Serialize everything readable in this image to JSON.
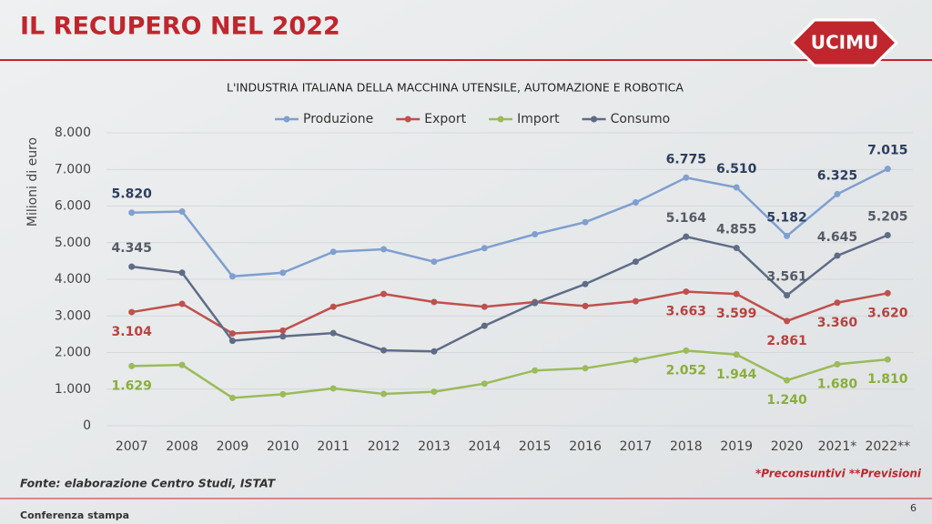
{
  "slide": {
    "title": "IL RECUPERO NEL 2022",
    "logo": "UCIMU",
    "source": "Fonte: elaborazione Centro Studi, ISTAT",
    "note": "*Preconsuntivi **Previsioni",
    "footer": "Conferenza stampa",
    "page": "6"
  },
  "chart_data": {
    "type": "line",
    "title": "L'INDUSTRIA ITALIANA DELLA MACCHINA UTENSILE, AUTOMAZIONE E ROBOTICA",
    "y_label": "Milioni di euro",
    "categories": [
      "2007",
      "2008",
      "2009",
      "2010",
      "2011",
      "2012",
      "2013",
      "2014",
      "2015",
      "2016",
      "2017",
      "2018",
      "2019",
      "2020",
      "2021*",
      "2022**"
    ],
    "ylim": [
      0,
      8000
    ],
    "yticks": [
      0,
      {
        "value": 1000,
        "label": "1.000"
      },
      {
        "value": 2000,
        "label": "2.000"
      },
      {
        "value": 3000,
        "label": "3.000"
      },
      {
        "value": 4000,
        "label": "4.000"
      },
      {
        "value": 5000,
        "label": "5.000"
      },
      {
        "value": 6000,
        "label": "6.000"
      },
      {
        "value": 7000,
        "label": "7.000"
      },
      {
        "value": 8000,
        "label": "8.000"
      }
    ],
    "grid": true,
    "legend": "top",
    "series": [
      {
        "name": "Produzione",
        "color": "#7f9fd0",
        "label_color": "#2d3e5c",
        "label_position": "above",
        "values": [
          5820,
          5850,
          4080,
          4180,
          4750,
          4820,
          4480,
          4850,
          5230,
          5560,
          6100,
          6775,
          6510,
          5182,
          6325,
          7015
        ],
        "value_labels": [
          "5.820",
          null,
          null,
          null,
          null,
          null,
          null,
          null,
          null,
          null,
          null,
          "6.775",
          "6.510",
          "5.182",
          "6.325",
          "7.015"
        ]
      },
      {
        "name": "Export",
        "color": "#c0504d",
        "label_color": "#b8423f",
        "label_position": "below",
        "values": [
          3104,
          3330,
          2520,
          2600,
          3250,
          3600,
          3380,
          3250,
          3380,
          3270,
          3400,
          3663,
          3599,
          2861,
          3360,
          3620
        ],
        "value_labels": [
          "3.104",
          null,
          null,
          null,
          null,
          null,
          null,
          null,
          null,
          null,
          null,
          "3.663",
          "3.599",
          "2.861",
          "3.360",
          "3.620"
        ]
      },
      {
        "name": "Import",
        "color": "#9bbb59",
        "label_color": "#8aae3c",
        "label_position": "below",
        "values": [
          1629,
          1660,
          760,
          860,
          1020,
          870,
          930,
          1150,
          1510,
          1570,
          1790,
          2052,
          1944,
          1240,
          1680,
          1810
        ],
        "value_labels": [
          "1.629",
          null,
          null,
          null,
          null,
          null,
          null,
          null,
          null,
          null,
          null,
          "2.052",
          "1.944",
          "1.240",
          "1.680",
          "1.810"
        ]
      },
      {
        "name": "Consumo",
        "color": "#5f6c87",
        "label_color": "#555b66",
        "label_position": "above",
        "values": [
          4345,
          4180,
          2320,
          2440,
          2530,
          2060,
          2030,
          2730,
          3350,
          3870,
          4480,
          5164,
          4855,
          3561,
          4645,
          5205
        ],
        "value_labels": [
          "4.345",
          null,
          null,
          null,
          null,
          null,
          null,
          null,
          null,
          null,
          null,
          "5.164",
          "4.855",
          "3.561",
          "4.645",
          "5.205"
        ]
      }
    ]
  }
}
